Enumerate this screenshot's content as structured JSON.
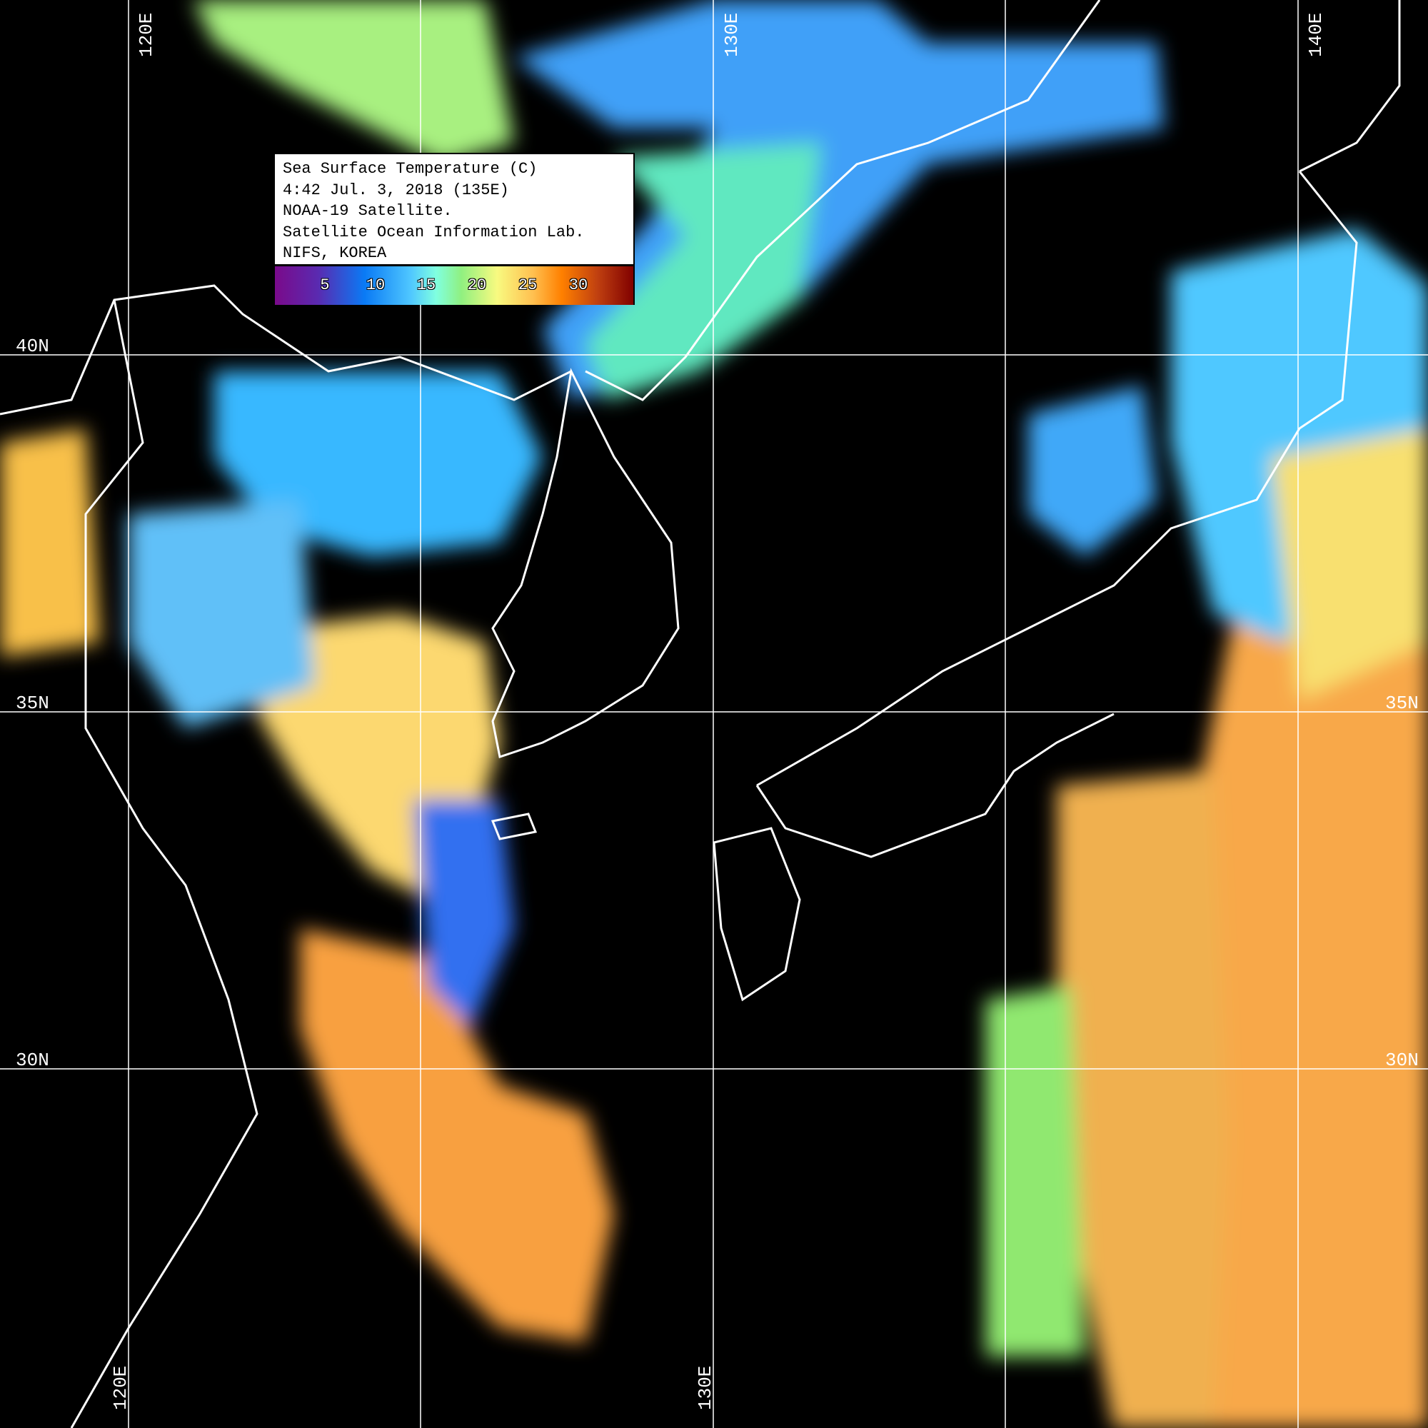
{
  "legend": {
    "lines": [
      "Sea Surface Temperature (C)",
      "4:42 Jul. 3, 2018 (135E)",
      "NOAA-19 Satellite.",
      "Satellite Ocean Information Lab.",
      "NIFS, KOREA"
    ],
    "colorbar_ticks": [
      "5",
      "10",
      "15",
      "20",
      "25",
      "30"
    ],
    "colorbar_colors": [
      "#7a0a8a",
      "#0a7af5",
      "#80ffe0",
      "#f8fa80",
      "#ff8000",
      "#800000"
    ]
  },
  "grid": {
    "longitude_labels_top": [
      "120E",
      "130E",
      "140E"
    ],
    "longitude_labels_bottom": [
      "120E",
      "130E"
    ],
    "latitude_labels_left": [
      "40N",
      "35N",
      "30N"
    ],
    "latitude_labels_right": [
      "35N",
      "30N"
    ],
    "line_color": "#ffffff"
  },
  "colors": {
    "background": "#000000",
    "coastline": "#ffffff",
    "contours": "#000000"
  }
}
